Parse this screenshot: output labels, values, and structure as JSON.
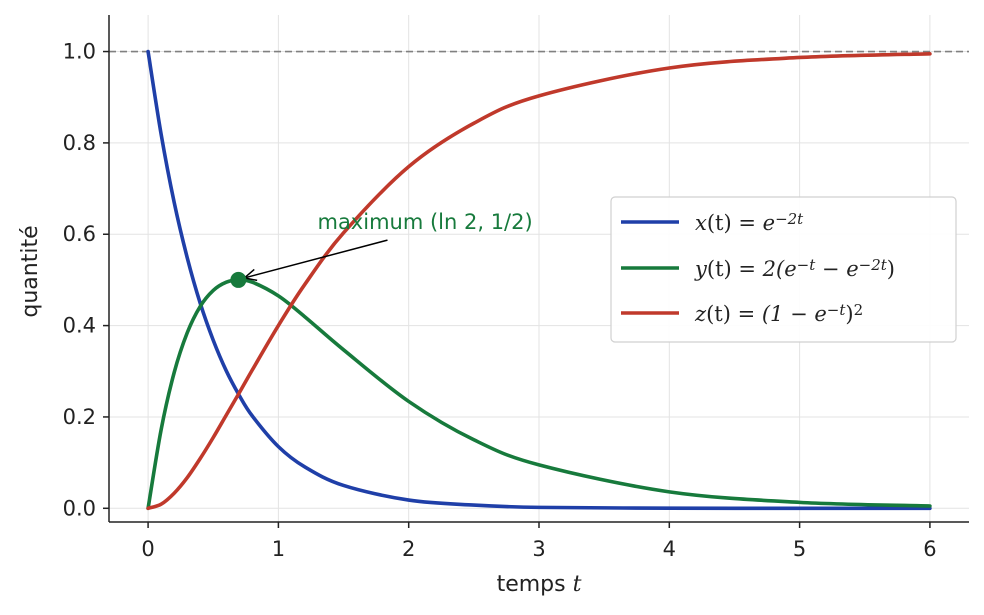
{
  "chart_data": {
    "type": "line",
    "title": "",
    "xlabel_prefix": "temps ",
    "xlabel_var": "t",
    "ylabel": "quantité",
    "xlim": [
      -0.3,
      6.3
    ],
    "ylim": [
      -0.03,
      1.08
    ],
    "xticks": [
      0,
      1,
      2,
      3,
      4,
      5,
      6
    ],
    "yticks": [
      0.0,
      0.2,
      0.4,
      0.6,
      0.8,
      1.0
    ],
    "xtick_labels": [
      "0",
      "1",
      "2",
      "3",
      "4",
      "5",
      "6"
    ],
    "ytick_labels": [
      "0.0",
      "0.2",
      "0.4",
      "0.6",
      "0.8",
      "1.0"
    ],
    "grid": true,
    "legend_position": "center-right",
    "reference_line": {
      "y": 1.0,
      "style": "dashed",
      "color": "#808080"
    },
    "series": [
      {
        "name": "x(t) = e^(−2t)",
        "color": "#1f3fa8",
        "x": [
          0,
          0.1,
          0.2,
          0.3,
          0.4,
          0.5,
          0.6,
          0.7,
          0.8,
          1.0,
          1.2,
          1.5,
          2.0,
          2.5,
          3.0,
          4.0,
          5.0,
          6.0
        ],
        "y": [
          1.0,
          0.819,
          0.67,
          0.549,
          0.449,
          0.368,
          0.301,
          0.247,
          0.202,
          0.135,
          0.091,
          0.05,
          0.018,
          0.007,
          0.002,
          0.0003,
          0.0,
          0.0
        ]
      },
      {
        "name": "y(t) = 2(e^(−t) − e^(−2t))",
        "color": "#177a3c",
        "x": [
          0,
          0.1,
          0.2,
          0.3,
          0.4,
          0.5,
          0.6,
          0.693,
          0.8,
          1.0,
          1.2,
          1.5,
          2.0,
          2.5,
          3.0,
          4.0,
          5.0,
          6.0
        ],
        "y": [
          0.0,
          0.172,
          0.297,
          0.384,
          0.442,
          0.477,
          0.495,
          0.5,
          0.495,
          0.465,
          0.42,
          0.347,
          0.234,
          0.15,
          0.095,
          0.036,
          0.013,
          0.005
        ]
      },
      {
        "name": "z(t) = (1 − e^(−t))²",
        "color": "#c0392b",
        "x": [
          0,
          0.1,
          0.2,
          0.3,
          0.4,
          0.5,
          0.6,
          0.7,
          0.8,
          1.0,
          1.2,
          1.5,
          2.0,
          2.5,
          3.0,
          4.0,
          5.0,
          6.0
        ],
        "y": [
          0.0,
          0.009,
          0.033,
          0.067,
          0.109,
          0.155,
          0.204,
          0.253,
          0.303,
          0.4,
          0.489,
          0.603,
          0.748,
          0.843,
          0.903,
          0.964,
          0.987,
          0.995
        ]
      }
    ],
    "legend": [
      {
        "f": "x",
        "rhs_base": "e",
        "rhs_sup": "−2t",
        "rhs_tail": ""
      },
      {
        "f": "y",
        "rhs_base": "2(e",
        "rhs_sup": "−t",
        "rhs_mid": " − e",
        "rhs_sup2": "−2t",
        "rhs_tail": ")"
      },
      {
        "f": "z",
        "rhs_base": "(1 − e",
        "rhs_sup": "−t",
        "rhs_tail": ")",
        "rhs_sup_final": "2"
      }
    ],
    "annotation": {
      "text": "maximum (ln 2, 1/2)",
      "point": {
        "x": 0.693,
        "y": 0.5
      },
      "text_position": {
        "x": 1.3,
        "y": 0.62
      },
      "color": "#177a3c"
    }
  }
}
